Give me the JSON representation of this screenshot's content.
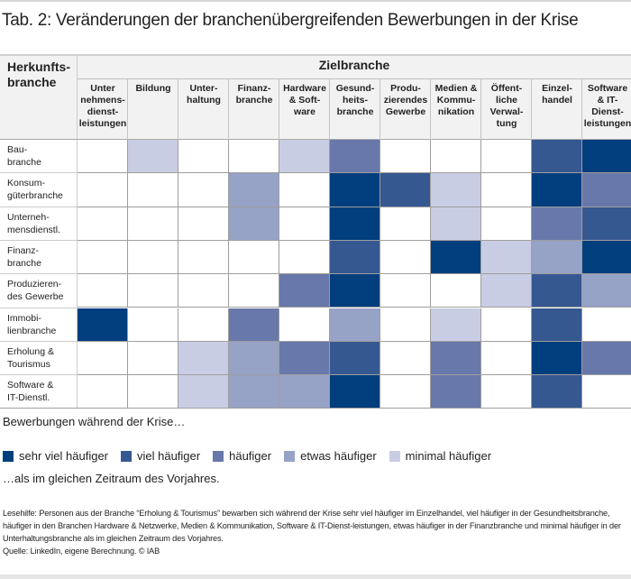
{
  "title": "Tab. 2:  Veränderungen der branchenübergreifenden Bewerbungen in der Krise",
  "chart_data": {
    "type": "heatmap",
    "title": "Tab. 2: Veränderungen der branchenübergreifenden Bewerbungen in der Krise",
    "row_header": "Herkunfts-branche",
    "column_group_header": "Zielbranche",
    "columns": [
      "Unter nehmens-dienst-leistungen",
      "Bildung",
      "Unter-haltung",
      "Finanz-branche",
      "Hardware & Soft-ware",
      "Gesund-heits-branche",
      "Produ-zierendes Gewerbe",
      "Medien & Kommu-nikation",
      "Öffent-liche Verwal-tung",
      "Einzel-handel",
      "Software & IT-Dienst-leistungen"
    ],
    "rows": [
      "Bau-branche",
      "Konsum-güterbranche",
      "Unterneh-mensdienstl.",
      "Finanz-branche",
      "Produzieren-des Gewerbe",
      "Immobi-lienbranche",
      "Erholung & Tourismus",
      "Software & IT-Dienstl."
    ],
    "level_scale": "0 = keine Angabe, 1 = sehr viel häufiger, 2 = viel häufiger, 3 = häufiger, 4 = etwas häufiger, 5 = minimal häufiger",
    "values": [
      [
        0,
        5,
        0,
        0,
        5,
        3,
        0,
        0,
        0,
        2,
        1
      ],
      [
        0,
        0,
        0,
        4,
        0,
        1,
        2,
        5,
        0,
        1,
        3
      ],
      [
        0,
        0,
        0,
        4,
        0,
        1,
        0,
        5,
        0,
        3,
        2
      ],
      [
        0,
        0,
        0,
        0,
        0,
        2,
        0,
        1,
        5,
        4,
        1
      ],
      [
        0,
        0,
        0,
        0,
        3,
        1,
        0,
        0,
        5,
        2,
        4
      ],
      [
        1,
        0,
        0,
        3,
        0,
        4,
        0,
        5,
        0,
        2,
        0
      ],
      [
        0,
        0,
        5,
        4,
        3,
        2,
        0,
        3,
        0,
        1,
        3
      ],
      [
        0,
        0,
        5,
        4,
        4,
        1,
        0,
        3,
        0,
        2,
        0
      ]
    ],
    "legend": {
      "intro": "Bewerbungen während der Krise…",
      "items": [
        {
          "level": 1,
          "label": "sehr viel häufiger",
          "color": "#003e7e"
        },
        {
          "level": 2,
          "label": "viel häufiger",
          "color": "#365891"
        },
        {
          "level": 3,
          "label": "häufiger",
          "color": "#6878aa"
        },
        {
          "level": 4,
          "label": "etwas häufiger",
          "color": "#97a2c7"
        },
        {
          "level": 5,
          "label": "minimal häufiger",
          "color": "#c9cde4"
        }
      ],
      "outro": "…als im gleichen Zeitraum des Vorjahres.",
      "placement": "bottom"
    },
    "empty_color": "#ffffff"
  },
  "note": "Lesehilfe: Personen aus der Branche “Erholung & Tourismus” bewarben sich während der Krise sehr viel häufiger im Einzelhandel, viel häufiger in der Gesundheitsbranche, häufiger in den Branchen Hardware & Netzwerke, Medien & Kommunikation, Software & IT-Dienst-leistungen, etwas häufiger in der Finanzbranche und minimal häufiger in der Unterhaltungsbranche als im gleichen Zeitraum des Vorjahres.",
  "source": "Quelle: LinkedIn, eigene Berechnung. © IAB"
}
